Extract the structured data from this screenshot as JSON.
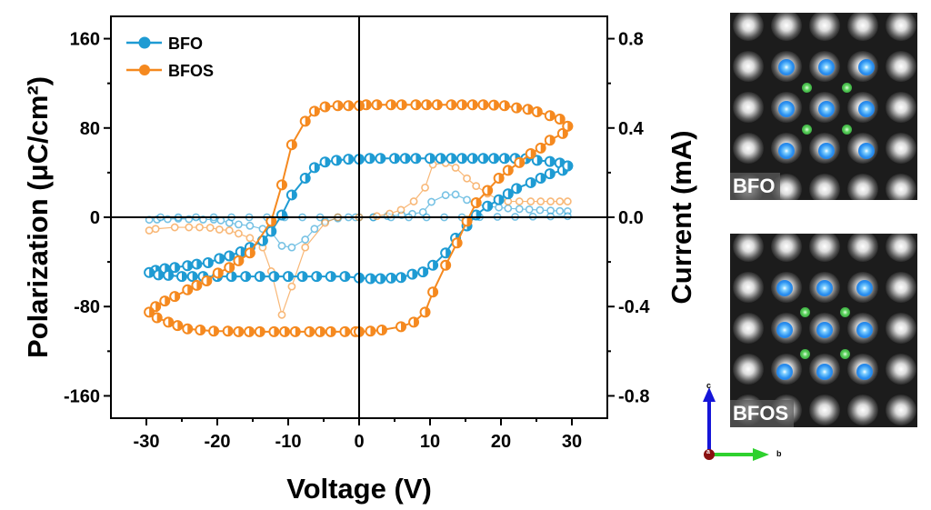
{
  "chart_data": {
    "type": "scatter",
    "xlabel": "Voltage (V)",
    "ylabel": "Polarization (μC/cm²)",
    "y2label": "Current (mA)",
    "xlim": [
      -35,
      35
    ],
    "ylim": [
      -180,
      180
    ],
    "y2lim": [
      -0.9,
      0.9
    ],
    "xticks": [
      "-30",
      "-20",
      "-10",
      "0",
      "10",
      "20",
      "30"
    ],
    "yticks": [
      "160",
      "80",
      "0",
      "-80",
      "-160"
    ],
    "y2ticks": [
      "0.8",
      "0.4",
      "0.0",
      "-0.4",
      "-0.8"
    ],
    "legend_position": "top-left",
    "grid": false,
    "colors": {
      "BFO": "#1e9bd3",
      "BFOS": "#f5891f"
    },
    "series": [
      {
        "name": "BFO",
        "kind": "polarization",
        "axis": "left",
        "points": [
          [
            29.4,
            46
          ],
          [
            28.3,
            48.6
          ],
          [
            26.9,
            50
          ],
          [
            25.1,
            51
          ],
          [
            23.5,
            52.5
          ],
          [
            22,
            52.7
          ],
          [
            20.5,
            52.7
          ],
          [
            19,
            52.7
          ],
          [
            17.5,
            52.7
          ],
          [
            16,
            52.7
          ],
          [
            14.5,
            52.7
          ],
          [
            13,
            52.7
          ],
          [
            11.5,
            52.7
          ],
          [
            10,
            52.7
          ],
          [
            8,
            52.7
          ],
          [
            6.5,
            52.7
          ],
          [
            5,
            52.7
          ],
          [
            3,
            52.7
          ],
          [
            1.5,
            52.7
          ],
          [
            0,
            52
          ],
          [
            -1.5,
            52
          ],
          [
            -3.2,
            51
          ],
          [
            -4.8,
            49.5
          ],
          [
            -6.3,
            44.5
          ],
          [
            -7.6,
            35
          ],
          [
            -9.5,
            20
          ],
          [
            -10.9,
            2
          ],
          [
            -12.4,
            -12.6
          ],
          [
            -13.6,
            -21
          ],
          [
            -15.4,
            -27
          ],
          [
            -16.7,
            -31
          ],
          [
            -18.3,
            -34.6
          ],
          [
            -19.7,
            -37
          ],
          [
            -21.3,
            -40.7
          ],
          [
            -22.9,
            -42
          ],
          [
            -24.2,
            -43.4
          ],
          [
            -26,
            -45
          ],
          [
            -27.4,
            -46
          ],
          [
            -28.7,
            -47.5
          ],
          [
            -29.6,
            -49.5
          ],
          [
            -28.3,
            -51.6
          ],
          [
            -26.9,
            -52
          ],
          [
            -25,
            -53
          ],
          [
            -23.5,
            -53
          ],
          [
            -22,
            -53
          ],
          [
            -20,
            -53
          ],
          [
            -18,
            -53
          ],
          [
            -16,
            -53
          ],
          [
            -14,
            -53
          ],
          [
            -12,
            -53
          ],
          [
            -10,
            -53
          ],
          [
            -8,
            -53
          ],
          [
            -6,
            -53
          ],
          [
            -4,
            -53
          ],
          [
            -2,
            -53
          ],
          [
            0,
            -54.4
          ],
          [
            1.6,
            -55
          ],
          [
            3,
            -55
          ],
          [
            4.5,
            -54.5
          ],
          [
            5.9,
            -54
          ],
          [
            7.5,
            -51
          ],
          [
            9,
            -49
          ],
          [
            10.4,
            -43
          ],
          [
            12.2,
            -32
          ],
          [
            13.6,
            -18.7
          ],
          [
            15.2,
            -7.7
          ],
          [
            16.5,
            2
          ],
          [
            18.1,
            10
          ],
          [
            19.7,
            15.7
          ],
          [
            21,
            21
          ],
          [
            22.2,
            25.8
          ],
          [
            24.2,
            31
          ],
          [
            25.6,
            35
          ],
          [
            26.9,
            39
          ],
          [
            28.7,
            42
          ],
          [
            29.4,
            46
          ]
        ]
      },
      {
        "name": "BFOS",
        "kind": "polarization",
        "axis": "left",
        "points": [
          [
            29.4,
            81.6
          ],
          [
            28.3,
            88
          ],
          [
            26.9,
            91
          ],
          [
            25.1,
            94.5
          ],
          [
            23.8,
            96.7
          ],
          [
            22.2,
            98
          ],
          [
            20.5,
            100
          ],
          [
            19,
            100.5
          ],
          [
            17.5,
            100.8
          ],
          [
            16,
            100.8
          ],
          [
            14.5,
            100.8
          ],
          [
            13,
            100.8
          ],
          [
            11,
            100.8
          ],
          [
            9.5,
            100.8
          ],
          [
            8,
            100.8
          ],
          [
            6,
            100.8
          ],
          [
            4.5,
            100.8
          ],
          [
            2.5,
            100.8
          ],
          [
            1,
            100.8
          ],
          [
            0,
            100
          ],
          [
            -1.5,
            100
          ],
          [
            -3,
            100
          ],
          [
            -4.8,
            99
          ],
          [
            -6.3,
            95
          ],
          [
            -7.6,
            86
          ],
          [
            -9.5,
            65
          ],
          [
            -10.9,
            29
          ],
          [
            -12.4,
            -3.6
          ],
          [
            -15.4,
            -32
          ],
          [
            -17,
            -39
          ],
          [
            -18.3,
            -45
          ],
          [
            -19.9,
            -50
          ],
          [
            -21.5,
            -57
          ],
          [
            -22.9,
            -61
          ],
          [
            -24.2,
            -65
          ],
          [
            -26,
            -71
          ],
          [
            -27.4,
            -75
          ],
          [
            -28.7,
            -80
          ],
          [
            -29.6,
            -85
          ],
          [
            -28.5,
            -90
          ],
          [
            -26.9,
            -94
          ],
          [
            -25.6,
            -97
          ],
          [
            -24.2,
            -100
          ],
          [
            -22.4,
            -101
          ],
          [
            -20.5,
            -102
          ],
          [
            -18.5,
            -102
          ],
          [
            -17,
            -102.5
          ],
          [
            -15.5,
            -102.5
          ],
          [
            -14,
            -102.5
          ],
          [
            -12,
            -102.5
          ],
          [
            -10.5,
            -102.5
          ],
          [
            -9,
            -102.5
          ],
          [
            -7,
            -102.5
          ],
          [
            -5.5,
            -102.5
          ],
          [
            -4,
            -102.5
          ],
          [
            -2,
            -102.5
          ],
          [
            -0.5,
            -102.5
          ],
          [
            0,
            -102.5
          ],
          [
            1.6,
            -102
          ],
          [
            3.2,
            -101
          ],
          [
            5.9,
            -98
          ],
          [
            7.7,
            -94
          ],
          [
            9.3,
            -85
          ],
          [
            10.4,
            -67
          ],
          [
            12.2,
            -43
          ],
          [
            13.8,
            -23
          ],
          [
            15.2,
            -3.6
          ],
          [
            16.5,
            13
          ],
          [
            18.1,
            24
          ],
          [
            19.7,
            35
          ],
          [
            21,
            42
          ],
          [
            22.6,
            49
          ],
          [
            24.2,
            57
          ],
          [
            25.6,
            62
          ],
          [
            26.9,
            69
          ],
          [
            28.7,
            75
          ],
          [
            29.4,
            81.6
          ]
        ]
      },
      {
        "kind": "current",
        "sample": "BFO",
        "axis": "right",
        "points": [
          [
            -29.6,
            -0.011
          ],
          [
            -28.5,
            -0.01
          ],
          [
            -27,
            -0.008
          ],
          [
            -25.5,
            -0.006
          ],
          [
            -24,
            -0.008
          ],
          [
            -22,
            -0.01
          ],
          [
            -20.5,
            -0.01
          ],
          [
            -19.5,
            -0.014
          ],
          [
            -18.3,
            -0.025
          ],
          [
            -17,
            -0.032
          ],
          [
            -15.4,
            -0.038
          ],
          [
            -13.6,
            -0.052
          ],
          [
            -12.4,
            -0.066
          ],
          [
            -10.9,
            -0.128
          ],
          [
            -9.5,
            -0.135
          ],
          [
            -7.6,
            -0.1
          ],
          [
            -6.3,
            -0.052
          ],
          [
            -4.8,
            -0.018
          ],
          [
            -3,
            -0.005
          ],
          [
            -1.5,
            0
          ],
          [
            0,
            0
          ],
          [
            2,
            0
          ],
          [
            4,
            0.005
          ],
          [
            6,
            0.01
          ],
          [
            7.5,
            0.015
          ],
          [
            9,
            0.023
          ],
          [
            10.2,
            0.069
          ],
          [
            12.2,
            0.099
          ],
          [
            13.6,
            0.102
          ],
          [
            15.2,
            0.078
          ],
          [
            16.5,
            0.058
          ],
          [
            18,
            0.05
          ],
          [
            19.7,
            0.044
          ],
          [
            21,
            0.04
          ],
          [
            22.6,
            0.037
          ],
          [
            24,
            0.035
          ],
          [
            25.5,
            0.032
          ],
          [
            27,
            0.03
          ],
          [
            28.3,
            0.028
          ],
          [
            29.4,
            0.027
          ]
        ]
      },
      {
        "kind": "current",
        "sample": "BFO",
        "axis": "right",
        "points": [
          [
            29.4,
            0.005
          ],
          [
            27,
            0.004
          ],
          [
            24.5,
            0.003
          ],
          [
            22,
            0.002
          ],
          [
            19.5,
            0.002
          ],
          [
            17,
            0.001
          ],
          [
            14.5,
            0
          ],
          [
            12,
            0
          ],
          [
            9.5,
            0
          ],
          [
            7,
            0
          ],
          [
            4.5,
            0
          ],
          [
            2,
            0
          ],
          [
            -0.5,
            0
          ],
          [
            -3,
            0
          ],
          [
            -5.5,
            0
          ],
          [
            -8,
            0
          ],
          [
            -10.5,
            0
          ],
          [
            -13,
            0
          ],
          [
            -15.5,
            0
          ],
          [
            -18,
            0
          ],
          [
            -20.5,
            0
          ],
          [
            -23,
            0
          ],
          [
            -25.5,
            0
          ],
          [
            -28,
            0
          ]
        ]
      },
      {
        "kind": "current",
        "sample": "BFOS",
        "axis": "right",
        "points": [
          [
            -29.6,
            -0.059
          ],
          [
            -28.7,
            -0.052
          ],
          [
            -26,
            -0.045
          ],
          [
            -24,
            -0.045
          ],
          [
            -22.5,
            -0.045
          ],
          [
            -21,
            -0.047
          ],
          [
            -19.7,
            -0.055
          ],
          [
            -18.3,
            -0.059
          ],
          [
            -17,
            -0.073
          ],
          [
            -15.4,
            -0.093
          ],
          [
            -13.6,
            -0.135
          ],
          [
            -12.4,
            -0.242
          ],
          [
            -10.9,
            -0.437
          ],
          [
            -9.5,
            -0.31
          ],
          [
            -7.6,
            -0.135
          ],
          [
            -4.8,
            -0.025
          ],
          [
            -3,
            0
          ],
          [
            0,
            0
          ],
          [
            2.5,
            0.005
          ],
          [
            4.3,
            0.016
          ],
          [
            5.9,
            0.033
          ],
          [
            7.7,
            0.071
          ],
          [
            9.3,
            0.133
          ],
          [
            10.4,
            0.236
          ],
          [
            12.2,
            0.243
          ],
          [
            13.6,
            0.222
          ],
          [
            15.2,
            0.174
          ],
          [
            16.5,
            0.14
          ],
          [
            18.1,
            0.106
          ],
          [
            19.7,
            0.078
          ],
          [
            21,
            0.071
          ],
          [
            22.6,
            0.071
          ],
          [
            24.2,
            0.071
          ],
          [
            25.6,
            0.071
          ],
          [
            27,
            0.071
          ],
          [
            28.3,
            0.071
          ],
          [
            29.4,
            0.071
          ]
        ]
      }
    ]
  },
  "legend": {
    "items": [
      "BFO",
      "BFOS"
    ]
  },
  "images": {
    "top_label": "BFO",
    "bottom_label": "BFOS",
    "axes": {
      "c": "c",
      "b": "b",
      "a": "a"
    }
  }
}
